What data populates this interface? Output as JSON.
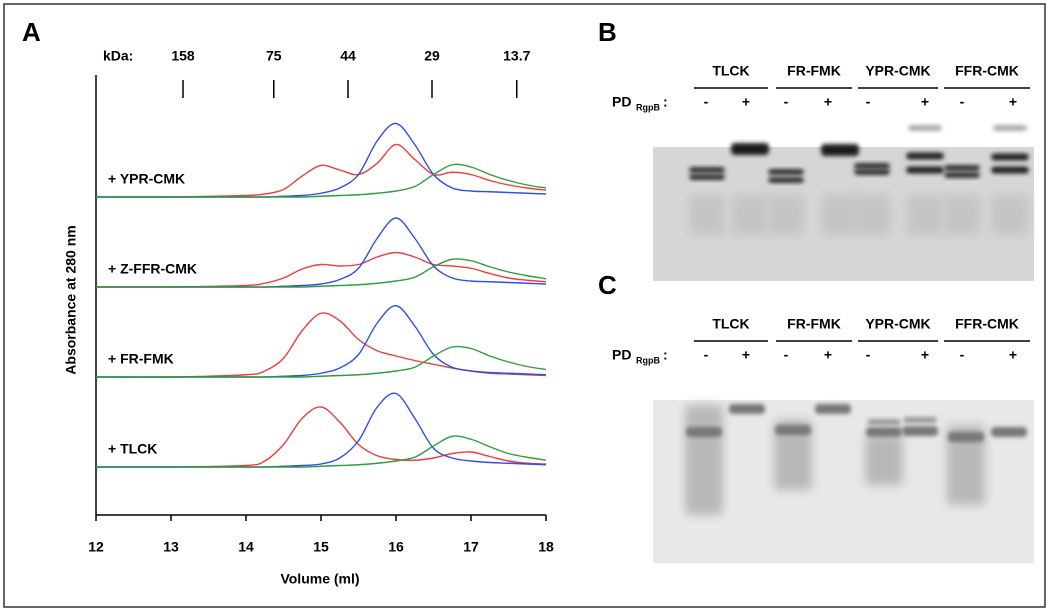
{
  "chart_data": {
    "type": "line",
    "panel_label": "A",
    "xlabel": "Volume (ml)",
    "ylabel": "Absorbance at 280 nm",
    "xlim": [
      12,
      18
    ],
    "xticks": [
      12,
      13,
      14,
      15,
      16,
      17,
      18
    ],
    "kda_label": "kDa:",
    "kda_markers": [
      {
        "value": 13.16,
        "label": "158"
      },
      {
        "value": 14.37,
        "label": "75"
      },
      {
        "value": 15.36,
        "label": "44"
      },
      {
        "value": 16.48,
        "label": "29"
      },
      {
        "value": 17.61,
        "label": "13.7"
      }
    ],
    "x": [
      12,
      13,
      14,
      14.25,
      14.5,
      14.75,
      15,
      15.25,
      15.5,
      15.75,
      16,
      16.25,
      16.5,
      16.75,
      17,
      17.25,
      17.5,
      17.75,
      18
    ],
    "traces": [
      {
        "label": "+ YPR-CMK",
        "series": [
          {
            "color": "#f03c3c",
            "values": [
              0,
              0,
              0.02,
              0.04,
              0.1,
              0.28,
              0.42,
              0.36,
              0.3,
              0.45,
              0.7,
              0.5,
              0.3,
              0.33,
              0.3,
              0.22,
              0.16,
              0.12,
              0.09
            ]
          },
          {
            "color": "#2f4fe6",
            "values": [
              0,
              0,
              0,
              0,
              0.01,
              0.02,
              0.05,
              0.12,
              0.3,
              0.75,
              0.98,
              0.7,
              0.3,
              0.12,
              0.08,
              0.07,
              0.06,
              0.05,
              0.04
            ]
          },
          {
            "color": "#2e9e3e",
            "values": [
              0,
              0,
              0,
              0,
              0,
              0,
              0.01,
              0.02,
              0.03,
              0.05,
              0.08,
              0.14,
              0.3,
              0.43,
              0.4,
              0.3,
              0.22,
              0.16,
              0.12
            ]
          }
        ]
      },
      {
        "label": "+ Z-FFR-CMK",
        "series": [
          {
            "color": "#f03c3c",
            "values": [
              0,
              0,
              0.02,
              0.05,
              0.12,
              0.24,
              0.3,
              0.28,
              0.3,
              0.4,
              0.46,
              0.4,
              0.3,
              0.28,
              0.25,
              0.18,
              0.12,
              0.09,
              0.07
            ]
          },
          {
            "color": "#2f4fe6",
            "values": [
              0,
              0,
              0,
              0,
              0.01,
              0.02,
              0.04,
              0.1,
              0.25,
              0.65,
              0.92,
              0.65,
              0.28,
              0.12,
              0.08,
              0.07,
              0.06,
              0.05,
              0.04
            ]
          },
          {
            "color": "#2e9e3e",
            "values": [
              0,
              0,
              0,
              0,
              0,
              0,
              0.01,
              0.02,
              0.03,
              0.05,
              0.08,
              0.13,
              0.27,
              0.37,
              0.35,
              0.27,
              0.2,
              0.15,
              0.11
            ]
          }
        ]
      },
      {
        "label": "+ FR-FMK",
        "series": [
          {
            "color": "#f03c3c",
            "values": [
              0,
              0,
              0.03,
              0.08,
              0.25,
              0.62,
              0.85,
              0.75,
              0.5,
              0.35,
              0.28,
              0.22,
              0.17,
              0.12,
              0.08,
              0.05,
              0.04,
              0.03,
              0.02
            ]
          },
          {
            "color": "#2f4fe6",
            "values": [
              0,
              0,
              0,
              0,
              0.01,
              0.02,
              0.05,
              0.12,
              0.3,
              0.72,
              0.95,
              0.68,
              0.3,
              0.13,
              0.08,
              0.06,
              0.05,
              0.04,
              0.03
            ]
          },
          {
            "color": "#2e9e3e",
            "values": [
              0,
              0,
              0,
              0,
              0,
              0,
              0.01,
              0.02,
              0.03,
              0.05,
              0.08,
              0.13,
              0.28,
              0.4,
              0.38,
              0.28,
              0.2,
              0.14,
              0.1
            ]
          }
        ]
      },
      {
        "label": "+ TLCK",
        "series": [
          {
            "color": "#f03c3c",
            "values": [
              0,
              0,
              0.02,
              0.08,
              0.3,
              0.65,
              0.8,
              0.6,
              0.3,
              0.15,
              0.1,
              0.09,
              0.12,
              0.18,
              0.2,
              0.14,
              0.08,
              0.05,
              0.04
            ]
          },
          {
            "color": "#2f4fe6",
            "values": [
              0,
              0,
              0,
              0,
              0.01,
              0.02,
              0.04,
              0.12,
              0.35,
              0.8,
              0.98,
              0.65,
              0.25,
              0.12,
              0.08,
              0.06,
              0.05,
              0.04,
              0.03
            ]
          },
          {
            "color": "#2e9e3e",
            "values": [
              0,
              0,
              0,
              0,
              0,
              0,
              0.01,
              0.02,
              0.03,
              0.05,
              0.08,
              0.13,
              0.28,
              0.41,
              0.37,
              0.27,
              0.18,
              0.13,
              0.09
            ]
          }
        ]
      }
    ]
  },
  "panel_b": {
    "panel_label": "B",
    "groups": [
      "TLCK",
      "FR-FMK",
      "YPR-CMK",
      "FFR-CMK"
    ],
    "pd_label": "PD",
    "pd_subscript": "RgpB",
    "pd_colon": ":",
    "lanes": [
      "-",
      "+",
      "-",
      "+",
      "-",
      "+",
      "-",
      "+"
    ]
  },
  "panel_c": {
    "panel_label": "C",
    "groups": [
      "TLCK",
      "FR-FMK",
      "YPR-CMK",
      "FFR-CMK"
    ],
    "pd_label": "PD",
    "pd_subscript": "RgpB",
    "pd_colon": ":",
    "lanes": [
      "-",
      "+",
      "-",
      "+",
      "-",
      "+",
      "-",
      "+"
    ]
  }
}
